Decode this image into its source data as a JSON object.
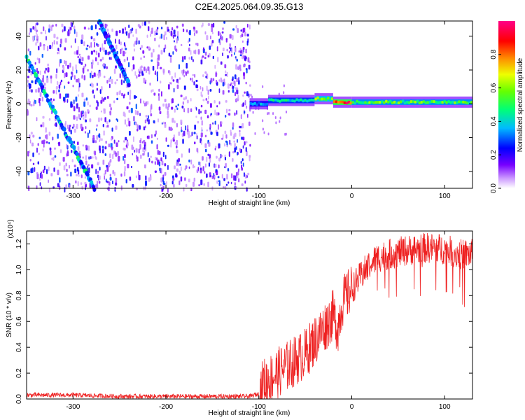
{
  "title": "C2E4.2025.064.09.35.G13",
  "chart_data": [
    {
      "type": "heatmap",
      "xlabel": "Height of straight line (km)",
      "ylabel": "Frequency (Hz)",
      "xlim": [
        -350,
        130
      ],
      "ylim": [
        -50,
        49
      ],
      "x_ticks": [
        -300,
        -200,
        -100,
        0,
        100
      ],
      "y_ticks": [
        -40,
        -20,
        0,
        20,
        40
      ],
      "colorbar": {
        "label": "Normalized spectral amplitude",
        "range": [
          0,
          1
        ],
        "ticks": [
          "0.0",
          "0.2",
          "0.4",
          "0.6",
          "0.8"
        ],
        "tick_values": [
          0,
          0.2,
          0.4,
          0.6,
          0.8
        ]
      },
      "colormap": [
        "#ffffff",
        "#6600ff",
        "#0000ff",
        "#00ccff",
        "#00ff66",
        "#99ff00",
        "#ffee00",
        "#ff6600",
        "#ff0000",
        "#ff0099"
      ],
      "features": {
        "noise_region_x": [
          -350,
          -110
        ],
        "carrier_segments": [
          {
            "x": [
              -110,
              -90
            ],
            "freq": 0,
            "amplitude": 0.35
          },
          {
            "x": [
              -90,
              -40
            ],
            "freq": 2,
            "amplitude": 0.45
          },
          {
            "x": [
              -40,
              -20
            ],
            "freq": 3,
            "amplitude": 0.6
          },
          {
            "x": [
              -20,
              0
            ],
            "freq": 1,
            "amplitude": 0.85
          },
          {
            "x": [
              0,
              130
            ],
            "freq": 1,
            "amplitude": 0.55
          }
        ],
        "diagonal_streaks": [
          {
            "x_start": -350,
            "freq_start": 27,
            "x_end": -277,
            "freq_end": -50,
            "amplitude": 0.4
          },
          {
            "x_start": -272,
            "freq_start": 49,
            "x_end": -240,
            "freq_end": 12,
            "amplitude": 0.3
          }
        ]
      }
    },
    {
      "type": "line",
      "xlabel": "Height of straight line (km)",
      "ylabel": "SNR (10 * v/v)",
      "y_multiplier": "(x10⁴)",
      "xlim": [
        -350,
        130
      ],
      "ylim": [
        0,
        1.3
      ],
      "x_ticks": [
        -300,
        -200,
        -100,
        0,
        100
      ],
      "y_ticks": [
        "0.0",
        "0.2",
        "0.4",
        "0.6",
        "0.8",
        "1.0",
        "1.2"
      ],
      "y_tick_values": [
        0,
        0.2,
        0.4,
        0.6,
        0.8,
        1.0,
        1.2
      ],
      "line_color": "#ee2020",
      "series": [
        {
          "x": [
            -350,
            -300,
            -250,
            -200,
            -150,
            -110,
            -100,
            -95,
            -80,
            -60,
            -50,
            -40,
            -30,
            -20,
            -15,
            -10,
            0,
            10,
            20,
            30,
            40,
            60,
            80,
            100,
            115,
            130
          ],
          "values": [
            0.03,
            0.03,
            0.02,
            0.02,
            0.02,
            0.02,
            0.04,
            0.12,
            0.2,
            0.3,
            0.35,
            0.45,
            0.55,
            0.65,
            0.55,
            0.75,
            0.85,
            0.95,
            1.05,
            1.1,
            1.12,
            1.15,
            1.17,
            1.16,
            1.12,
            1.12
          ]
        }
      ]
    }
  ]
}
